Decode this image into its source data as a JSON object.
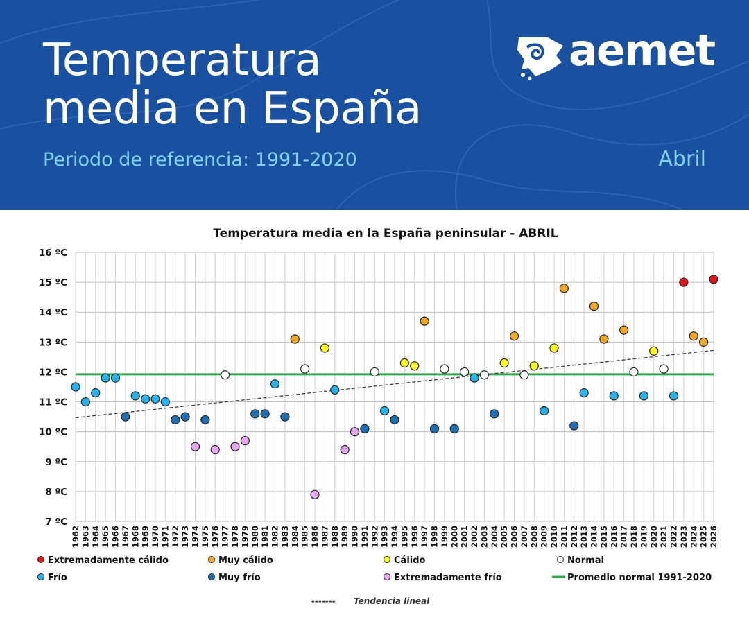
{
  "header": {
    "title_line1": "Temperatura",
    "title_line2": "media en España",
    "subtitle": "Periodo de referencia: 1991-2020",
    "month": "Abril",
    "logo_text": "aemet"
  },
  "colors": {
    "header_bg": "#1a50a0",
    "accent": "#7fd3f5",
    "extremadamente_calido": "#e8141b",
    "muy_calido": "#f5a623",
    "calido": "#ffff1e",
    "normal": "#ffffff",
    "frio": "#24b3ec",
    "muy_frio": "#1f6fb5",
    "extremadamente_frio": "#e6a6f2",
    "promedio": "#2aa84a",
    "tendencia": "#333333"
  },
  "chart_data": {
    "type": "scatter",
    "title": "Temperatura media en la España peninsular - ABRIL",
    "ylim": [
      7,
      16
    ],
    "yticks": [
      "7 ºC",
      "8 ºC",
      "9 ºC",
      "10 ºC",
      "11 ºC",
      "12 ºC",
      "13 ºC",
      "14 ºC",
      "15 ºC",
      "16 ºC"
    ],
    "x": [
      1962,
      1963,
      1964,
      1965,
      1966,
      1967,
      1968,
      1969,
      1970,
      1971,
      1972,
      1973,
      1974,
      1975,
      1976,
      1977,
      1978,
      1979,
      1980,
      1981,
      1982,
      1983,
      1984,
      1985,
      1986,
      1987,
      1988,
      1989,
      1990,
      1991,
      1992,
      1993,
      1994,
      1995,
      1996,
      1997,
      1998,
      1999,
      2000,
      2001,
      2002,
      2003,
      2004,
      2005,
      2006,
      2007,
      2008,
      2009,
      2010,
      2011,
      2012,
      2013,
      2014,
      2015,
      2016,
      2017,
      2018,
      2019,
      2020,
      2021,
      2022,
      2023,
      2024,
      2025,
      2026
    ],
    "points": [
      {
        "year": 1962,
        "value": 11.5,
        "cat": "frio"
      },
      {
        "year": 1963,
        "value": 11.0,
        "cat": "frio"
      },
      {
        "year": 1964,
        "value": 11.3,
        "cat": "frio"
      },
      {
        "year": 1965,
        "value": 11.8,
        "cat": "frio"
      },
      {
        "year": 1966,
        "value": 11.8,
        "cat": "frio"
      },
      {
        "year": 1967,
        "value": 10.5,
        "cat": "muy_frio"
      },
      {
        "year": 1968,
        "value": 11.2,
        "cat": "frio"
      },
      {
        "year": 1969,
        "value": 11.1,
        "cat": "frio"
      },
      {
        "year": 1970,
        "value": 11.1,
        "cat": "frio"
      },
      {
        "year": 1971,
        "value": 11.0,
        "cat": "frio"
      },
      {
        "year": 1972,
        "value": 10.4,
        "cat": "muy_frio"
      },
      {
        "year": 1973,
        "value": 10.5,
        "cat": "muy_frio"
      },
      {
        "year": 1974,
        "value": 9.5,
        "cat": "extremadamente_frio"
      },
      {
        "year": 1975,
        "value": 10.4,
        "cat": "muy_frio"
      },
      {
        "year": 1976,
        "value": 9.4,
        "cat": "extremadamente_frio"
      },
      {
        "year": 1977,
        "value": 11.9,
        "cat": "normal"
      },
      {
        "year": 1978,
        "value": 9.5,
        "cat": "extremadamente_frio"
      },
      {
        "year": 1979,
        "value": 9.7,
        "cat": "extremadamente_frio"
      },
      {
        "year": 1980,
        "value": 10.6,
        "cat": "muy_frio"
      },
      {
        "year": 1981,
        "value": 10.6,
        "cat": "muy_frio"
      },
      {
        "year": 1982,
        "value": 11.6,
        "cat": "frio"
      },
      {
        "year": 1983,
        "value": 10.5,
        "cat": "muy_frio"
      },
      {
        "year": 1984,
        "value": 13.1,
        "cat": "muy_calido"
      },
      {
        "year": 1985,
        "value": 12.1,
        "cat": "normal"
      },
      {
        "year": 1986,
        "value": 7.9,
        "cat": "extremadamente_frio"
      },
      {
        "year": 1987,
        "value": 12.8,
        "cat": "calido"
      },
      {
        "year": 1988,
        "value": 11.4,
        "cat": "frio"
      },
      {
        "year": 1989,
        "value": 9.4,
        "cat": "extremadamente_frio"
      },
      {
        "year": 1990,
        "value": 10.0,
        "cat": "extremadamente_frio"
      },
      {
        "year": 1991,
        "value": 10.1,
        "cat": "muy_frio"
      },
      {
        "year": 1992,
        "value": 12.0,
        "cat": "normal"
      },
      {
        "year": 1993,
        "value": 10.7,
        "cat": "frio"
      },
      {
        "year": 1994,
        "value": 10.4,
        "cat": "muy_frio"
      },
      {
        "year": 1995,
        "value": 12.3,
        "cat": "calido"
      },
      {
        "year": 1996,
        "value": 12.2,
        "cat": "calido"
      },
      {
        "year": 1997,
        "value": 13.7,
        "cat": "muy_calido"
      },
      {
        "year": 1998,
        "value": 10.1,
        "cat": "muy_frio"
      },
      {
        "year": 1999,
        "value": 12.1,
        "cat": "normal"
      },
      {
        "year": 2000,
        "value": 10.1,
        "cat": "muy_frio"
      },
      {
        "year": 2001,
        "value": 12.0,
        "cat": "normal"
      },
      {
        "year": 2002,
        "value": 11.8,
        "cat": "frio"
      },
      {
        "year": 2003,
        "value": 11.9,
        "cat": "normal"
      },
      {
        "year": 2004,
        "value": 10.6,
        "cat": "muy_frio"
      },
      {
        "year": 2005,
        "value": 12.3,
        "cat": "calido"
      },
      {
        "year": 2006,
        "value": 13.2,
        "cat": "muy_calido"
      },
      {
        "year": 2007,
        "value": 11.9,
        "cat": "normal"
      },
      {
        "year": 2008,
        "value": 12.2,
        "cat": "calido"
      },
      {
        "year": 2009,
        "value": 10.7,
        "cat": "frio"
      },
      {
        "year": 2010,
        "value": 12.8,
        "cat": "calido"
      },
      {
        "year": 2011,
        "value": 14.8,
        "cat": "muy_calido"
      },
      {
        "year": 2012,
        "value": 10.2,
        "cat": "muy_frio"
      },
      {
        "year": 2013,
        "value": 11.3,
        "cat": "frio"
      },
      {
        "year": 2014,
        "value": 14.2,
        "cat": "muy_calido"
      },
      {
        "year": 2015,
        "value": 13.1,
        "cat": "muy_calido"
      },
      {
        "year": 2016,
        "value": 11.2,
        "cat": "frio"
      },
      {
        "year": 2017,
        "value": 13.4,
        "cat": "muy_calido"
      },
      {
        "year": 2018,
        "value": 12.0,
        "cat": "normal"
      },
      {
        "year": 2019,
        "value": 11.2,
        "cat": "frio"
      },
      {
        "year": 2020,
        "value": 12.7,
        "cat": "calido"
      },
      {
        "year": 2021,
        "value": 12.1,
        "cat": "normal"
      },
      {
        "year": 2022,
        "value": 11.2,
        "cat": "frio"
      },
      {
        "year": 2023,
        "value": 15.0,
        "cat": "extremadamente_calido"
      },
      {
        "year": 2024,
        "value": 13.2,
        "cat": "muy_calido"
      },
      {
        "year": 2025,
        "value": 13.0,
        "cat": "muy_calido"
      },
      {
        "year": 2026,
        "value": 15.1,
        "cat": "extremadamente_calido"
      }
    ],
    "promedio_normal": 11.92,
    "tendencia": {
      "start": [
        1962,
        10.47
      ],
      "end": [
        2026,
        12.72
      ]
    },
    "grid": true,
    "legend_position": "bottom",
    "legend": [
      {
        "key": "extremadamente_calido",
        "label": "Extremadamente cálido"
      },
      {
        "key": "muy_calido",
        "label": "Muy cálido"
      },
      {
        "key": "calido",
        "label": "Cálido"
      },
      {
        "key": "normal",
        "label": "Normal"
      },
      {
        "key": "frio",
        "label": "Frío"
      },
      {
        "key": "muy_frio",
        "label": "Muy frío"
      },
      {
        "key": "extremadamente_frio",
        "label": "Extremadamente frío"
      },
      {
        "key": "promedio",
        "label": "Promedio normal 1991-2020"
      }
    ],
    "trend_label": "Tendencia lineal",
    "trend_dash": "-------"
  }
}
